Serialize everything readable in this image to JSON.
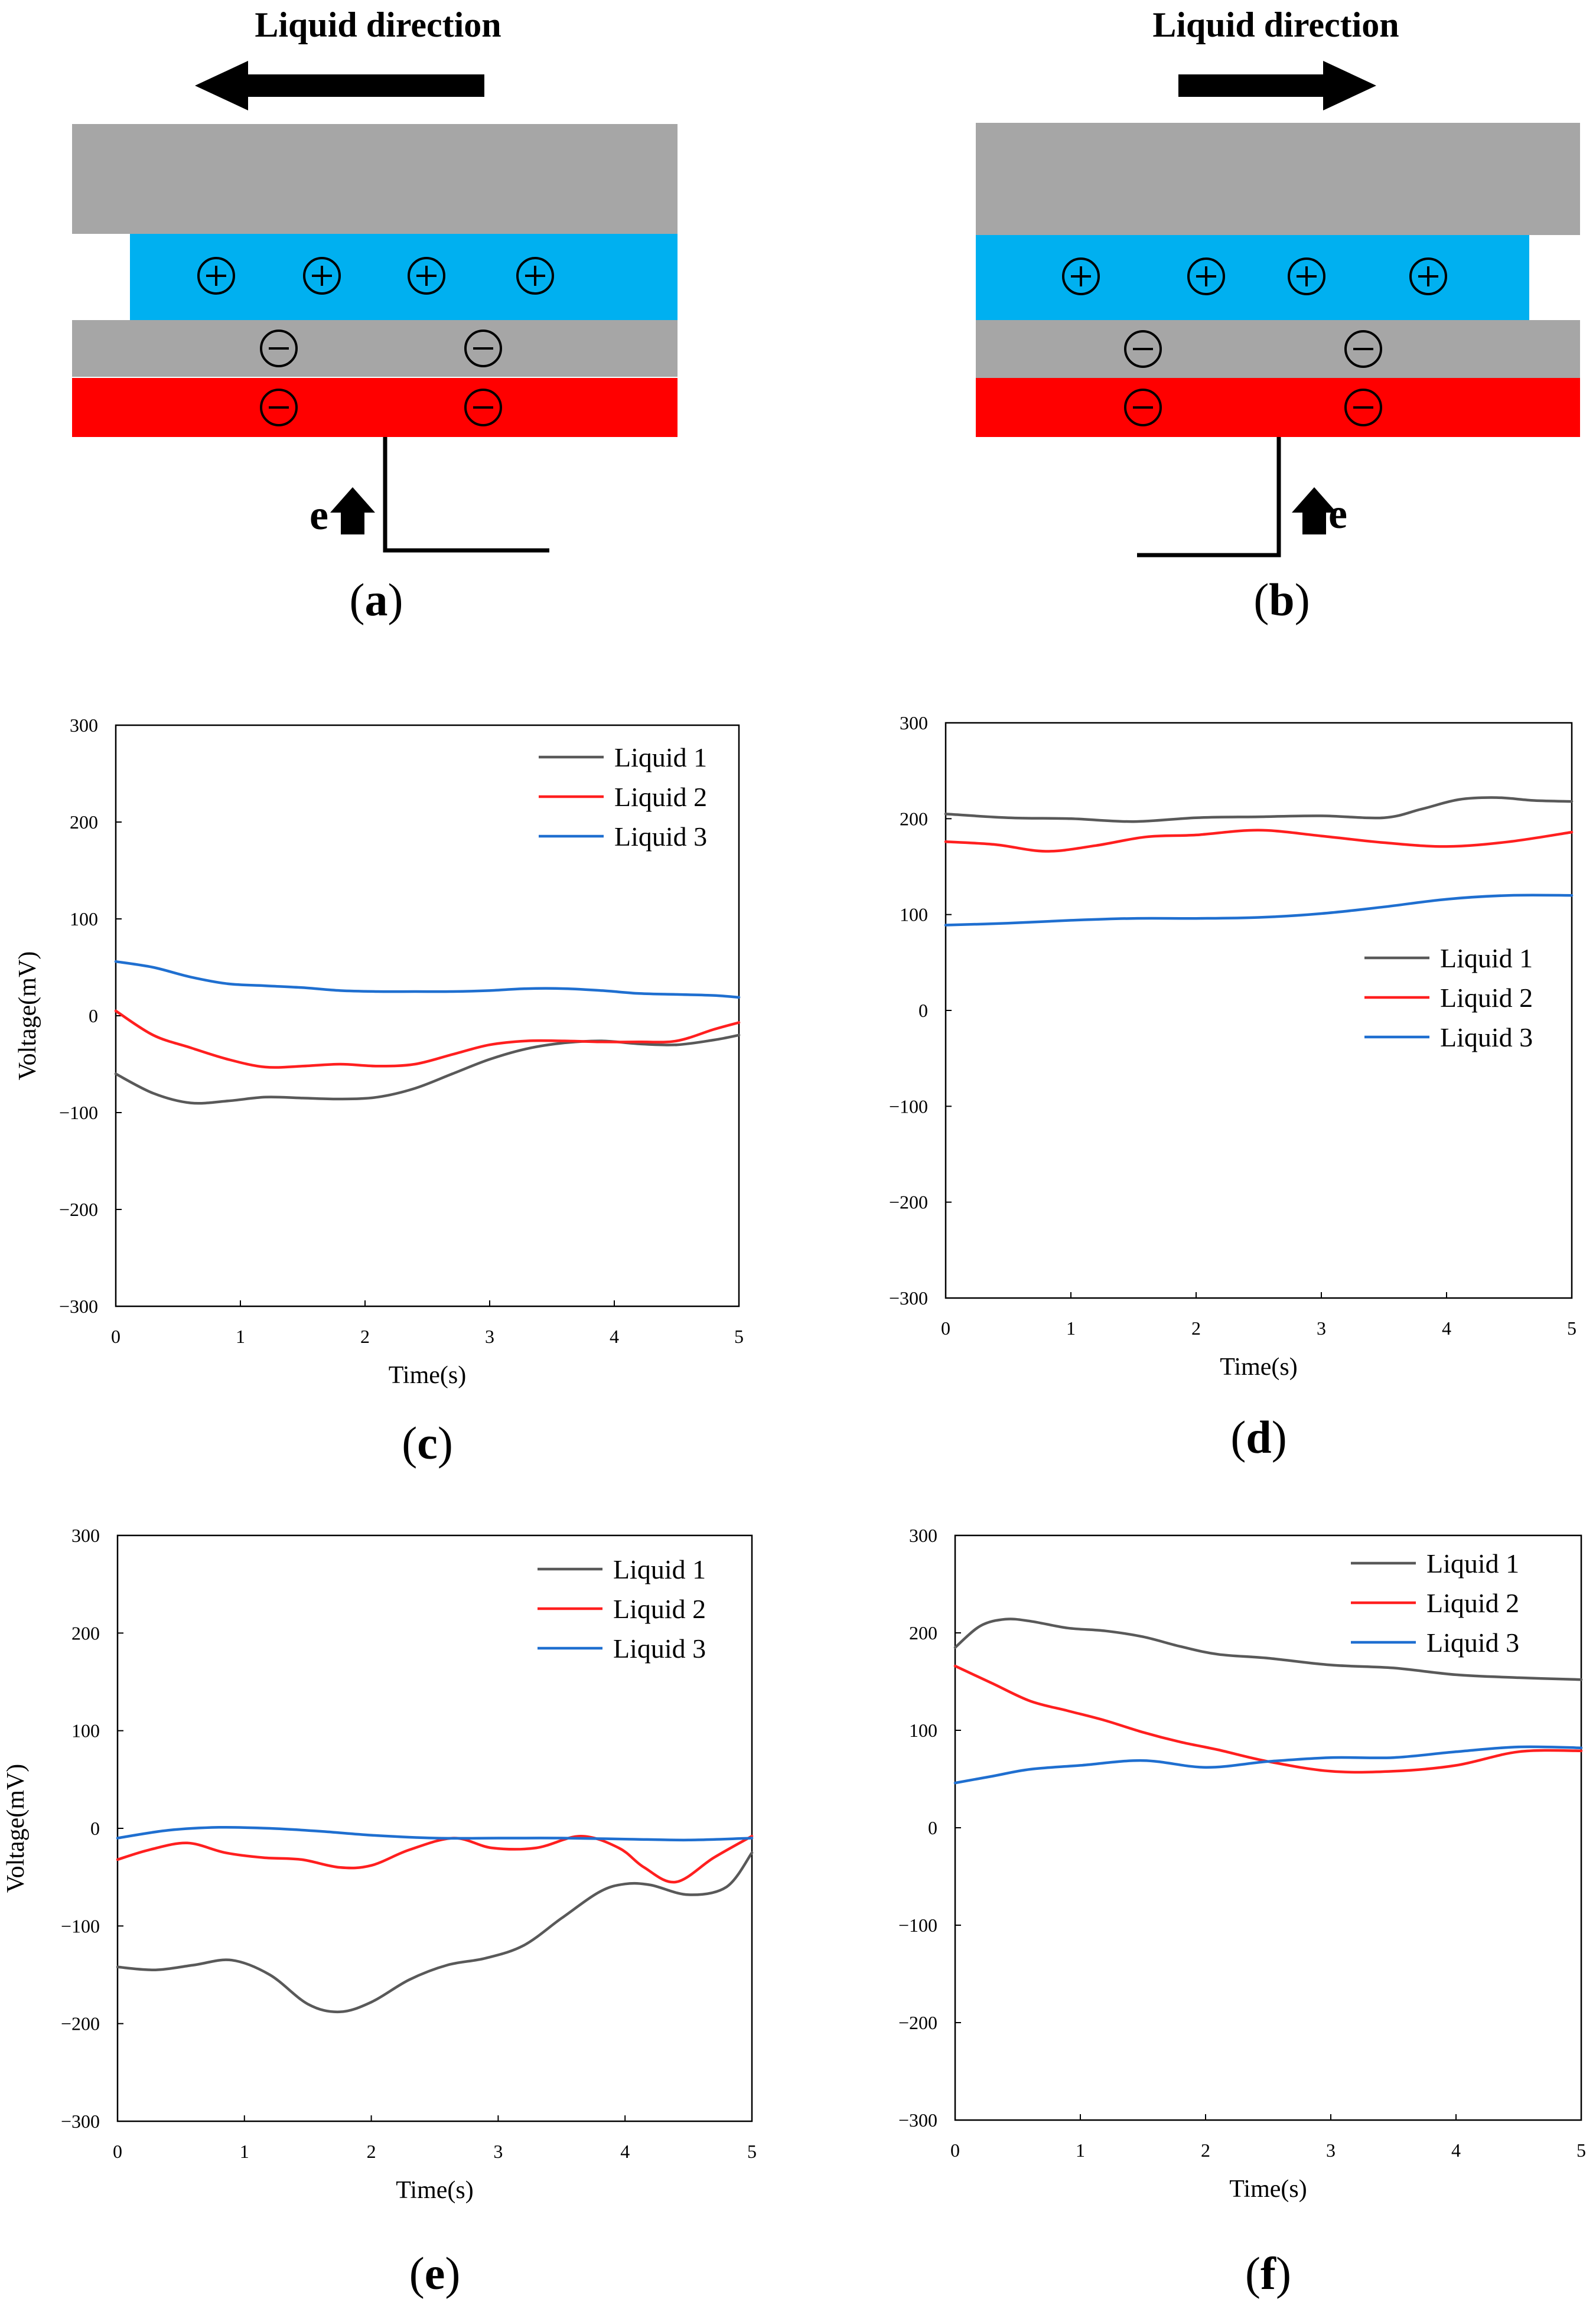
{
  "colors": {
    "plate_gray": "#a6a6a6",
    "liquid_blue": "#00b0f0",
    "electrode_red": "#ff0000",
    "liquid1": "#595959",
    "liquid2": "#ff1f1f",
    "liquid3": "#1f6fd0"
  },
  "schematics": [
    {
      "id": "a",
      "title": "Liquid direction",
      "direction": "left",
      "electron_label": "e",
      "label_open": "(",
      "label_letter": "a",
      "label_close": ")",
      "icons": [
        "arrow-left-icon",
        "plus-circle-icon",
        "minus-circle-icon",
        "arrow-up-icon"
      ]
    },
    {
      "id": "b",
      "title": "Liquid direction",
      "direction": "right",
      "electron_label": "e",
      "label_open": "(",
      "label_letter": "b",
      "label_close": ")",
      "icons": [
        "arrow-right-icon",
        "plus-circle-icon",
        "minus-circle-icon",
        "arrow-up-icon"
      ]
    }
  ],
  "chart_data": [
    {
      "id": "c",
      "type": "line",
      "panel_label": "c",
      "xlabel": "Time(s)",
      "ylabel": "Voltage(mV)",
      "xlim": [
        0,
        5
      ],
      "ylim": [
        -300,
        300
      ],
      "xticks": [
        0,
        1,
        2,
        3,
        4,
        5
      ],
      "yticks": [
        300,
        200,
        100,
        0,
        -100,
        -200,
        -300
      ],
      "legend_position": "top-right",
      "series": [
        {
          "name": "Liquid 1",
          "color": "#595959",
          "x": [
            0,
            0.3,
            0.6,
            0.9,
            1.2,
            1.5,
            1.8,
            2.1,
            2.4,
            2.7,
            3.0,
            3.3,
            3.6,
            3.9,
            4.2,
            4.5,
            4.8,
            5.0
          ],
          "y": [
            -60,
            -80,
            -90,
            -88,
            -84,
            -85,
            -86,
            -84,
            -75,
            -60,
            -45,
            -34,
            -28,
            -26,
            -29,
            -30,
            -25,
            -20
          ]
        },
        {
          "name": "Liquid 2",
          "color": "#ff1f1f",
          "x": [
            0,
            0.3,
            0.6,
            0.9,
            1.2,
            1.5,
            1.8,
            2.1,
            2.4,
            2.7,
            3.0,
            3.3,
            3.6,
            3.9,
            4.2,
            4.5,
            4.8,
            5.0
          ],
          "y": [
            5,
            -20,
            -33,
            -45,
            -53,
            -52,
            -50,
            -52,
            -50,
            -40,
            -30,
            -26,
            -26,
            -27,
            -27,
            -26,
            -14,
            -7
          ]
        },
        {
          "name": "Liquid 3",
          "color": "#1f6fd0",
          "x": [
            0,
            0.3,
            0.6,
            0.9,
            1.2,
            1.5,
            1.8,
            2.1,
            2.4,
            2.7,
            3.0,
            3.3,
            3.6,
            3.9,
            4.2,
            4.5,
            4.8,
            5.0
          ],
          "y": [
            56,
            50,
            40,
            33,
            31,
            29,
            26,
            25,
            25,
            25,
            26,
            28,
            28,
            26,
            23,
            22,
            21,
            19
          ]
        }
      ]
    },
    {
      "id": "d",
      "type": "line",
      "panel_label": "d",
      "xlabel": "Time(s)",
      "ylabel": "",
      "xlim": [
        0,
        5
      ],
      "ylim": [
        -300,
        300
      ],
      "xticks": [
        0,
        1,
        2,
        3,
        4,
        5
      ],
      "yticks": [
        300,
        200,
        100,
        0,
        -100,
        -200,
        -300
      ],
      "legend_position": "center-right",
      "series": [
        {
          "name": "Liquid 1",
          "color": "#595959",
          "x": [
            0,
            0.5,
            1.0,
            1.5,
            2.0,
            2.5,
            3.0,
            3.5,
            3.8,
            4.1,
            4.4,
            4.7,
            5.0
          ],
          "y": [
            205,
            201,
            200,
            197,
            201,
            202,
            203,
            201,
            210,
            220,
            222,
            219,
            218
          ]
        },
        {
          "name": "Liquid 2",
          "color": "#ff1f1f",
          "x": [
            0,
            0.4,
            0.8,
            1.2,
            1.6,
            2.0,
            2.5,
            3.0,
            3.5,
            4.0,
            4.5,
            5.0
          ],
          "y": [
            176,
            173,
            166,
            172,
            181,
            183,
            188,
            182,
            175,
            171,
            176,
            186
          ]
        },
        {
          "name": "Liquid 3",
          "color": "#1f6fd0",
          "x": [
            0,
            0.5,
            1.0,
            1.5,
            2.0,
            2.5,
            3.0,
            3.5,
            4.0,
            4.5,
            5.0
          ],
          "y": [
            89,
            91,
            94,
            96,
            96,
            97,
            101,
            108,
            116,
            120,
            120
          ]
        }
      ]
    },
    {
      "id": "e",
      "type": "line",
      "panel_label": "e",
      "xlabel": "Time(s)",
      "ylabel": "Voltage(mV)",
      "xlim": [
        0,
        5
      ],
      "ylim": [
        -300,
        300
      ],
      "xticks": [
        0,
        1,
        2,
        3,
        4,
        5
      ],
      "yticks": [
        300,
        200,
        100,
        0,
        -100,
        -200,
        -300
      ],
      "legend_position": "top-right",
      "series": [
        {
          "name": "Liquid 1",
          "color": "#595959",
          "x": [
            0,
            0.3,
            0.6,
            0.9,
            1.2,
            1.5,
            1.75,
            2.0,
            2.3,
            2.6,
            2.9,
            3.2,
            3.5,
            3.8,
            4.0,
            4.2,
            4.5,
            4.8,
            5.0
          ],
          "y": [
            -142,
            -145,
            -140,
            -135,
            -150,
            -180,
            -188,
            -178,
            -155,
            -140,
            -133,
            -120,
            -92,
            -65,
            -57,
            -58,
            -68,
            -60,
            -25
          ]
        },
        {
          "name": "Liquid 2",
          "color": "#ff1f1f",
          "x": [
            0,
            0.25,
            0.55,
            0.85,
            1.15,
            1.45,
            1.75,
            2.0,
            2.3,
            2.65,
            2.95,
            3.3,
            3.65,
            3.95,
            4.15,
            4.4,
            4.7,
            5.0
          ],
          "y": [
            -32,
            -22,
            -15,
            -25,
            -30,
            -32,
            -40,
            -38,
            -22,
            -10,
            -20,
            -20,
            -8,
            -20,
            -40,
            -55,
            -30,
            -8
          ]
        },
        {
          "name": "Liquid 3",
          "color": "#1f6fd0",
          "x": [
            0,
            0.4,
            0.8,
            1.2,
            1.6,
            2.0,
            2.5,
            3.0,
            3.5,
            4.0,
            4.5,
            5.0
          ],
          "y": [
            -10,
            -2,
            1,
            0,
            -3,
            -7,
            -10,
            -10,
            -10,
            -11,
            -12,
            -10
          ]
        }
      ]
    },
    {
      "id": "f",
      "type": "line",
      "panel_label": "f",
      "xlabel": "Time(s)",
      "ylabel": "",
      "xlim": [
        0,
        5
      ],
      "ylim": [
        -300,
        300
      ],
      "xticks": [
        0,
        1,
        2,
        3,
        4,
        5
      ],
      "yticks": [
        300,
        200,
        100,
        0,
        -100,
        -200,
        -300
      ],
      "legend_position": "top-right",
      "series": [
        {
          "name": "Liquid 1",
          "color": "#595959",
          "x": [
            0,
            0.2,
            0.4,
            0.6,
            0.9,
            1.2,
            1.5,
            1.8,
            2.1,
            2.5,
            3.0,
            3.5,
            4.0,
            4.5,
            5.0
          ],
          "y": [
            185,
            207,
            214,
            212,
            205,
            202,
            196,
            186,
            178,
            174,
            167,
            164,
            157,
            154,
            152
          ]
        },
        {
          "name": "Liquid 2",
          "color": "#ff1f1f",
          "x": [
            0,
            0.3,
            0.6,
            0.9,
            1.2,
            1.5,
            1.8,
            2.1,
            2.5,
            3.0,
            3.5,
            4.0,
            4.5,
            5.0
          ],
          "y": [
            166,
            148,
            130,
            120,
            110,
            98,
            88,
            80,
            68,
            58,
            58,
            64,
            78,
            79
          ]
        },
        {
          "name": "Liquid 3",
          "color": "#1f6fd0",
          "x": [
            0,
            0.3,
            0.6,
            1.0,
            1.5,
            2.0,
            2.5,
            3.0,
            3.5,
            4.0,
            4.5,
            5.0
          ],
          "y": [
            46,
            53,
            60,
            64,
            69,
            62,
            68,
            72,
            72,
            78,
            83,
            82
          ]
        }
      ]
    }
  ]
}
